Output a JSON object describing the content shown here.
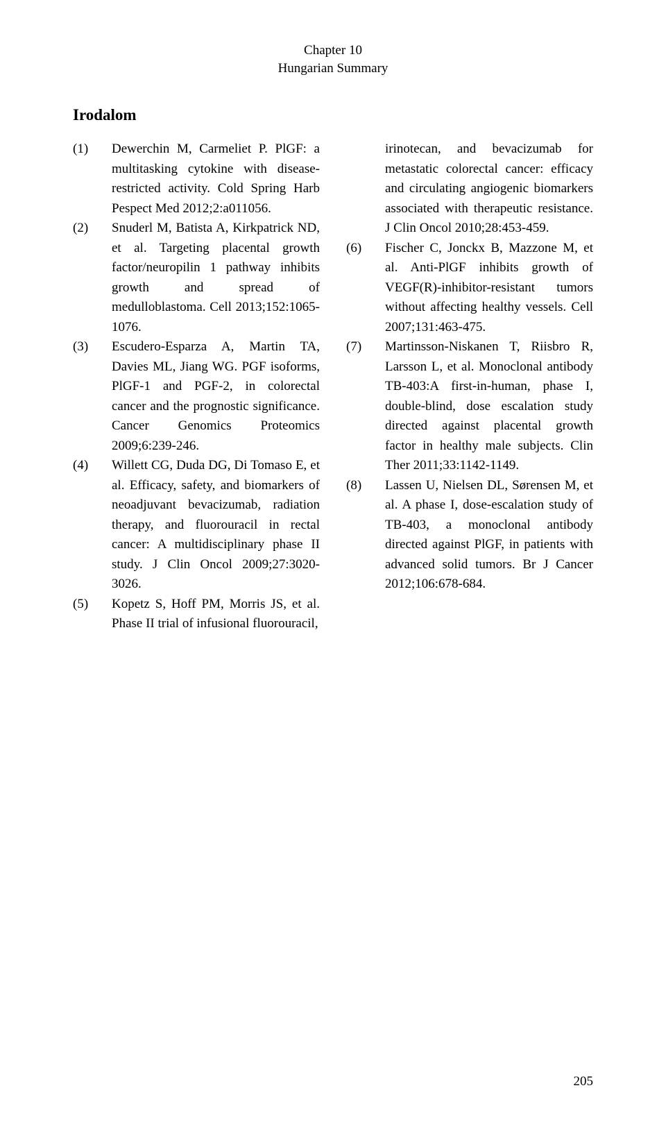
{
  "header": {
    "chapter": "Chapter 10",
    "subtitle": "Hungarian Summary"
  },
  "section_title": "Irodalom",
  "left_refs": [
    {
      "num": "(1)",
      "text": "Dewerchin M, Carmeliet P. PlGF: a multitasking cytokine with disease-restricted activity. Cold Spring Harb Pespect Med 2012;2:a011056."
    },
    {
      "num": "(2)",
      "text": "Snuderl M, Batista A, Kirkpatrick ND, et al. Targeting placental growth factor/neuropilin 1 pathway inhibits growth and spread of medulloblastoma. Cell 2013;152:1065-1076."
    },
    {
      "num": "(3)",
      "text": "Escudero-Esparza A, Martin TA, Davies ML, Jiang WG. PGF isoforms, PlGF-1 and PGF-2, in colorectal cancer and the prognostic significance. Cancer Genomics Proteomics 2009;6:239-246."
    },
    {
      "num": "(4)",
      "text": "Willett CG, Duda DG, Di Tomaso E, et al. Efficacy, safety, and biomarkers of neoadjuvant bevacizumab, radiation therapy, and fluorouracil in rectal cancer: A multidisciplinary phase II study. J Clin Oncol 2009;27:3020-3026."
    },
    {
      "num": "(5)",
      "text": "Kopetz S, Hoff PM, Morris JS, et al. Phase II trial of infusional fluorouracil,"
    }
  ],
  "right_refs": [
    {
      "num": "",
      "text": "irinotecan, and bevacizumab for metastatic colorectal cancer: efficacy and circulating angiogenic biomarkers associated with therapeutic resistance. J Clin Oncol 2010;28:453-459."
    },
    {
      "num": "(6)",
      "text": "Fischer C, Jonckx B, Mazzone M, et al. Anti-PlGF inhibits growth of VEGF(R)-inhibitor-resistant tumors without affecting healthy vessels. Cell 2007;131:463-475."
    },
    {
      "num": "(7)",
      "text": "Martinsson-Niskanen T, Riisbro R, Larsson L, et al. Monoclonal antibody TB-403:A first-in-human, phase I, double-blind, dose escalation study directed against placental growth factor in healthy male subjects. Clin Ther 2011;33:1142-1149."
    },
    {
      "num": "(8)",
      "text": "Lassen U, Nielsen DL, Sørensen M, et al. A phase I, dose-escalation study of TB-403, a monoclonal antibody directed against PlGF, in patients with advanced solid tumors. Br J Cancer 2012;106:678-684."
    }
  ],
  "page_number": "205"
}
